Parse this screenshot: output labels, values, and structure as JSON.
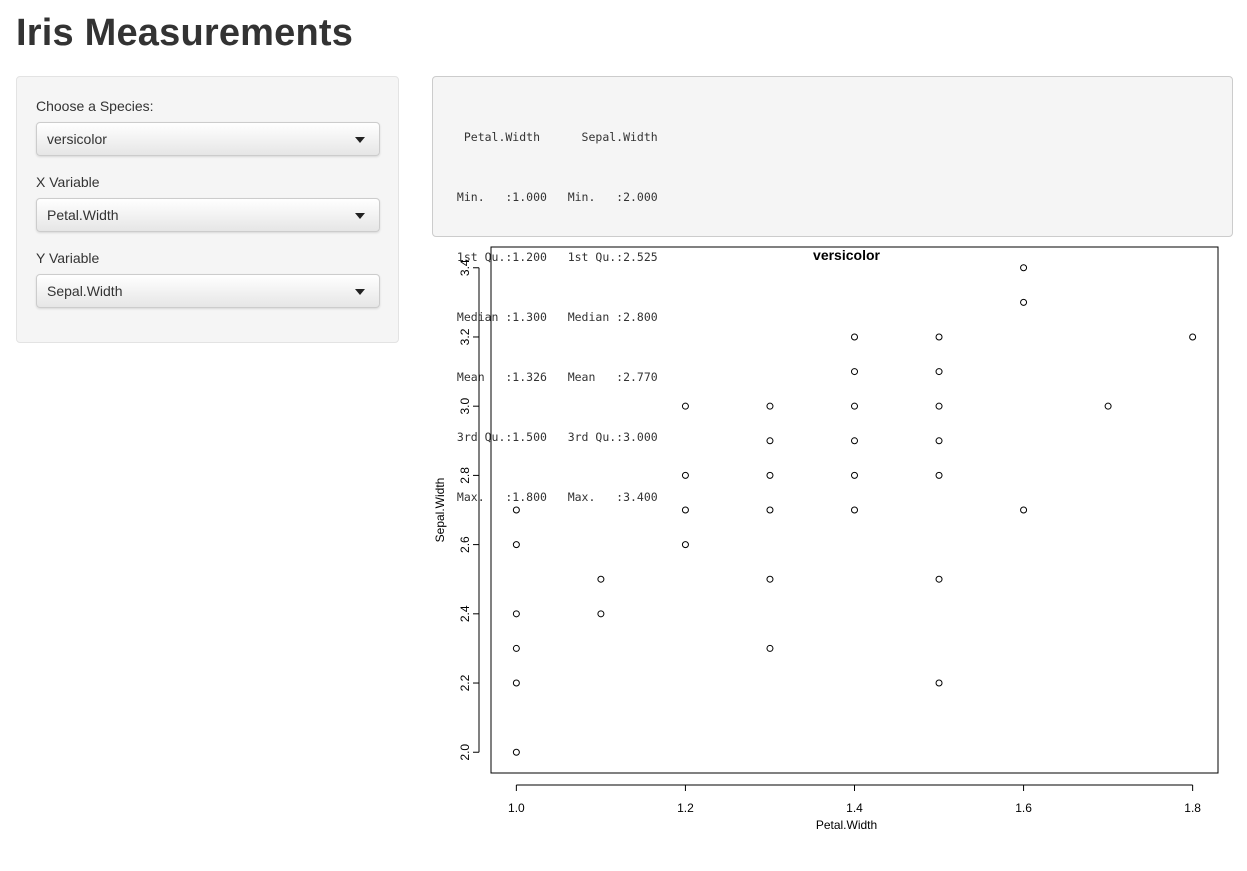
{
  "page": {
    "title": "Iris Measurements"
  },
  "sidebar": {
    "species": {
      "label": "Choose a Species:",
      "value": "versicolor"
    },
    "x_variable": {
      "label": "X Variable",
      "value": "Petal.Width"
    },
    "y_variable": {
      "label": "Y Variable",
      "value": "Sepal.Width"
    }
  },
  "summary": {
    "lines": [
      "  Petal.Width      Sepal.Width  ",
      " Min.   :1.000   Min.   :2.000  ",
      " 1st Qu.:1.200   1st Qu.:2.525  ",
      " Median :1.300   Median :2.800  ",
      " Mean   :1.326   Mean   :2.770  ",
      " 3rd Qu.:1.500   3rd Qu.:3.000  ",
      " Max.   :1.800   Max.   :3.400  "
    ]
  },
  "chart_data": {
    "type": "scatter",
    "title": "versicolor",
    "xlabel": "Petal.Width",
    "ylabel": "Sepal.Width",
    "xlim": [
      0.97,
      1.83
    ],
    "ylim": [
      1.94,
      3.46
    ],
    "xticks": [
      "1.0",
      "1.2",
      "1.4",
      "1.6",
      "1.8"
    ],
    "yticks": [
      "2.0",
      "2.2",
      "2.4",
      "2.6",
      "2.8",
      "3.0",
      "3.2",
      "3.4"
    ],
    "marker": "open-circle",
    "color": "#000000",
    "points": [
      {
        "x": 1.0,
        "y": 2.0
      },
      {
        "x": 1.0,
        "y": 2.2
      },
      {
        "x": 1.0,
        "y": 2.3
      },
      {
        "x": 1.0,
        "y": 2.4
      },
      {
        "x": 1.0,
        "y": 2.6
      },
      {
        "x": 1.0,
        "y": 2.7
      },
      {
        "x": 1.1,
        "y": 2.4
      },
      {
        "x": 1.1,
        "y": 2.5
      },
      {
        "x": 1.2,
        "y": 2.6
      },
      {
        "x": 1.2,
        "y": 2.7
      },
      {
        "x": 1.2,
        "y": 2.8
      },
      {
        "x": 1.2,
        "y": 3.0
      },
      {
        "x": 1.3,
        "y": 2.3
      },
      {
        "x": 1.3,
        "y": 2.5
      },
      {
        "x": 1.3,
        "y": 2.7
      },
      {
        "x": 1.3,
        "y": 2.8
      },
      {
        "x": 1.3,
        "y": 2.9
      },
      {
        "x": 1.3,
        "y": 3.0
      },
      {
        "x": 1.4,
        "y": 2.7
      },
      {
        "x": 1.4,
        "y": 2.8
      },
      {
        "x": 1.4,
        "y": 2.9
      },
      {
        "x": 1.4,
        "y": 3.0
      },
      {
        "x": 1.4,
        "y": 3.1
      },
      {
        "x": 1.4,
        "y": 3.2
      },
      {
        "x": 1.5,
        "y": 2.2
      },
      {
        "x": 1.5,
        "y": 2.5
      },
      {
        "x": 1.5,
        "y": 2.8
      },
      {
        "x": 1.5,
        "y": 2.9
      },
      {
        "x": 1.5,
        "y": 3.0
      },
      {
        "x": 1.5,
        "y": 3.1
      },
      {
        "x": 1.5,
        "y": 3.2
      },
      {
        "x": 1.6,
        "y": 2.7
      },
      {
        "x": 1.6,
        "y": 3.3
      },
      {
        "x": 1.6,
        "y": 3.4
      },
      {
        "x": 1.7,
        "y": 3.0
      },
      {
        "x": 1.8,
        "y": 3.2
      }
    ]
  }
}
